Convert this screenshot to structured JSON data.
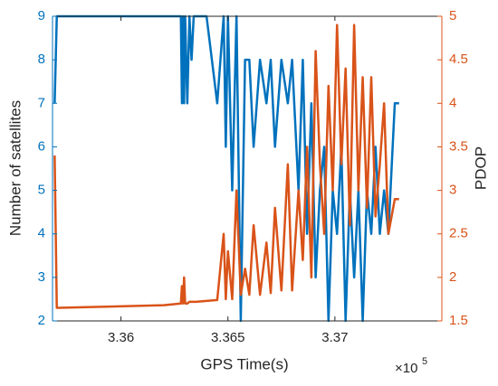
{
  "chart_data": {
    "type": "line",
    "xlabel": "GPS Time(s)",
    "ylabel": "Number of satellites",
    "y2label": "PDOP",
    "x_multiplier_base": "×10",
    "x_multiplier_exp": "5",
    "x": [
      335690,
      335700,
      335710,
      336200,
      336280,
      336285,
      336290,
      336295,
      336300,
      336310,
      336320,
      336330,
      336340,
      336350,
      336400,
      336450,
      336480,
      336490,
      336500,
      336520,
      336540,
      336560,
      336580,
      336600,
      336620,
      336650,
      336680,
      336700,
      336720,
      336750,
      336780,
      336800,
      336830,
      336850,
      336870,
      336890,
      336910,
      336930,
      336950,
      336970,
      336990,
      337010,
      337030,
      337050,
      337070,
      337090,
      337110,
      337130,
      337150,
      337170,
      337190,
      337210,
      337230,
      337250,
      337280,
      337300
    ],
    "series": [
      {
        "name": "Number of satellites",
        "color": "#0072bd",
        "axis": "y",
        "values": [
          7,
          9,
          9,
          9,
          9,
          7,
          9,
          7,
          9,
          7,
          9,
          8,
          9,
          9,
          9,
          7,
          9,
          6,
          9,
          5,
          9,
          2,
          8,
          8,
          6,
          8,
          7,
          8,
          6,
          8,
          7,
          8,
          5,
          8,
          4,
          7,
          3,
          5,
          6,
          2,
          5,
          4,
          6,
          2,
          5,
          3,
          5,
          2,
          5,
          4,
          6,
          4,
          5,
          4,
          7,
          7
        ]
      },
      {
        "name": "PDOP",
        "color": "#d95319",
        "axis": "y2",
        "values": [
          3.4,
          1.65,
          1.65,
          1.68,
          1.7,
          1.9,
          1.7,
          2,
          1.7,
          1.7,
          1.72,
          1.72,
          1.72,
          1.72,
          1.73,
          1.74,
          2.5,
          1.75,
          2.3,
          1.75,
          3,
          1.8,
          2.1,
          1.8,
          2.6,
          1.8,
          2.4,
          1.82,
          2.8,
          1.85,
          3.3,
          1.85,
          3,
          2.2,
          3.5,
          2,
          4.6,
          3.3,
          2.5,
          4.2,
          3,
          4.9,
          3.3,
          4.4,
          2.6,
          4.9,
          3,
          4.3,
          2.8,
          4.3,
          2.7,
          3.3,
          4,
          2.5,
          2.9,
          2.9
        ]
      }
    ],
    "xlim": [
      335680,
      337500
    ],
    "xticks": [
      {
        "value": 336000,
        "label": "3.36"
      },
      {
        "value": 336500,
        "label": "3.365"
      },
      {
        "value": 337000,
        "label": "3.37"
      }
    ],
    "ylim": [
      2,
      9
    ],
    "yticks": [
      2,
      3,
      4,
      5,
      6,
      7,
      8,
      9
    ],
    "y2lim": [
      1.5,
      5
    ],
    "y2ticks": [
      1.5,
      2,
      2.5,
      3,
      3.5,
      4,
      4.5,
      5
    ],
    "grid": false
  }
}
